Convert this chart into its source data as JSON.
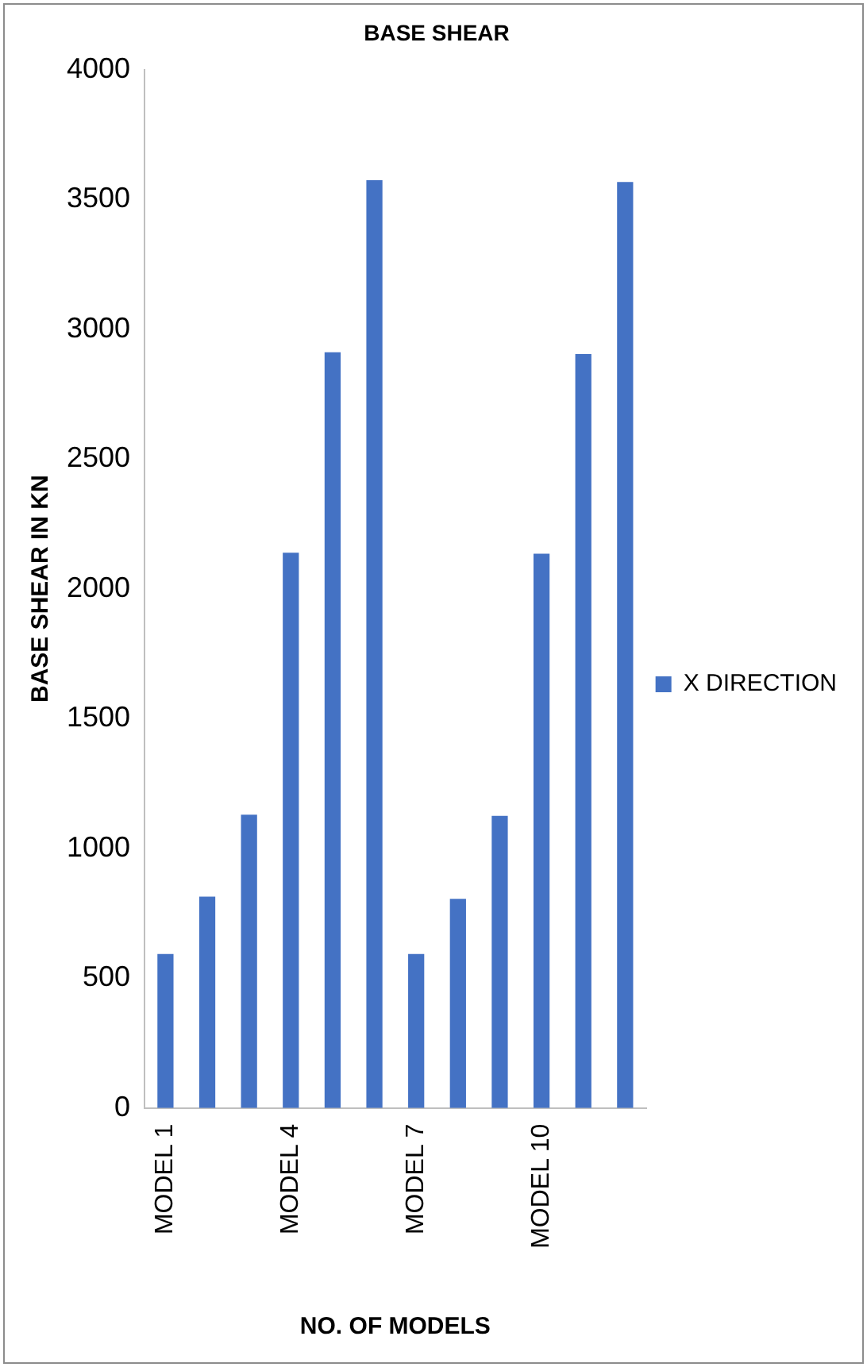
{
  "chart_data": {
    "type": "bar",
    "title": "BASE SHEAR",
    "xlabel": "NO. OF MODELS",
    "ylabel": "BASE SHEAR IN KN",
    "categories": [
      "MODEL 1",
      null,
      null,
      "MODEL 4",
      null,
      null,
      "MODEL 7",
      null,
      null,
      "MODEL 10",
      null,
      null
    ],
    "series": [
      {
        "name": "X DIRECTION",
        "color": "#4472c4",
        "values": [
          593,
          814,
          1130,
          2139,
          2911,
          3574,
          593,
          806,
          1125,
          2135,
          2904,
          3567
        ]
      }
    ],
    "ylim": [
      0,
      4000
    ],
    "yticks": [
      0,
      500,
      1000,
      1500,
      2000,
      2500,
      3000,
      3500,
      4000
    ],
    "grid": false,
    "legend": "right"
  }
}
